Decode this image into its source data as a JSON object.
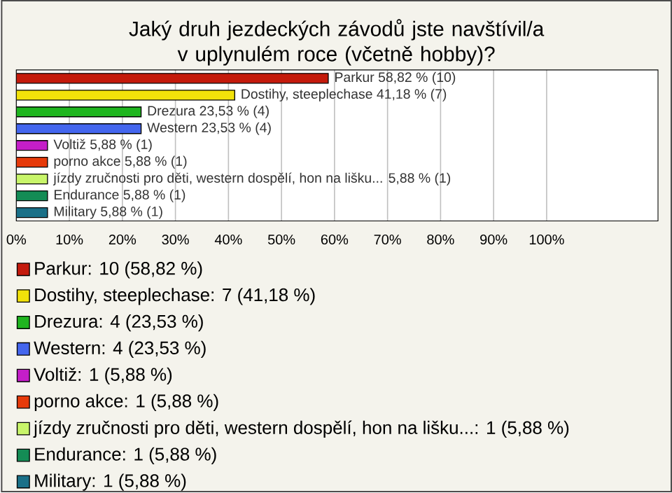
{
  "chart_data": {
    "type": "bar",
    "orientation": "horizontal",
    "title": "Jaký druh jezdeckých závodů jste navštívil/a v uplynulém roce (včetně hobby)?",
    "categories": [
      null,
      null,
      null,
      null,
      null,
      null,
      null,
      null,
      null
    ],
    "series": [
      {
        "name": "Parkur: 10 (58,82 %)",
        "color": "#c41a0c",
        "values": [
          58.82,
          null,
          null,
          null,
          null,
          null,
          null,
          null,
          null
        ],
        "value_labels": [
          "Parkur 58,82 % (10)",
          null,
          null,
          null,
          null,
          null,
          null,
          null,
          null
        ]
      },
      {
        "name": "Dostihy, steeplechase: 7 (41,18 %)",
        "color": "#f2e20a",
        "values": [
          null,
          41.18,
          null,
          null,
          null,
          null,
          null,
          null,
          null
        ],
        "value_labels": [
          null,
          "Dostihy, steeplechase 41,18 % (7)",
          null,
          null,
          null,
          null,
          null,
          null,
          null
        ]
      },
      {
        "name": "Drezura: 4 (23,53 %)",
        "color": "#1fb51f",
        "values": [
          null,
          null,
          23.53,
          null,
          null,
          null,
          null,
          null,
          null
        ],
        "value_labels": [
          null,
          null,
          "Drezura 23,53 % (4)",
          null,
          null,
          null,
          null,
          null,
          null
        ]
      },
      {
        "name": "Western: 4 (23,53 %)",
        "color": "#4466ee",
        "values": [
          null,
          null,
          null,
          23.53,
          null,
          null,
          null,
          null,
          null
        ],
        "value_labels": [
          null,
          null,
          null,
          "Western 23,53 % (4)",
          null,
          null,
          null,
          null,
          null
        ]
      },
      {
        "name": "Voltiž: 1 (5,88 %)",
        "color": "#c41ec8",
        "values": [
          null,
          null,
          null,
          null,
          5.88,
          null,
          null,
          null,
          null
        ],
        "value_labels": [
          null,
          null,
          null,
          null,
          "Voltiž 5,88 % (1)",
          null,
          null,
          null,
          null
        ]
      },
      {
        "name": "porno akce: 1 (5,88 %)",
        "color": "#e63a0a",
        "values": [
          null,
          null,
          null,
          null,
          null,
          5.88,
          null,
          null,
          null
        ],
        "value_labels": [
          null,
          null,
          null,
          null,
          null,
          "porno akce 5,88 % (1)",
          null,
          null,
          null
        ]
      },
      {
        "name": "jízdy zručnosti pro děti, western dospělí, hon na lišku...: 1 (5,88 %)",
        "color": "#c8f56a",
        "values": [
          null,
          null,
          null,
          null,
          null,
          null,
          5.88,
          null,
          null
        ],
        "value_labels": [
          null,
          null,
          null,
          null,
          null,
          null,
          "jízdy zručnosti pro děti, western dospělí, hon na lišku... 5,88 % (1)",
          null,
          null
        ]
      },
      {
        "name": "Endurance: 1 (5,88 %)",
        "color": "#148c55",
        "values": [
          null,
          null,
          null,
          null,
          null,
          null,
          null,
          5.88,
          null
        ],
        "value_labels": [
          null,
          null,
          null,
          null,
          null,
          null,
          null,
          "Endurance 5,88 % (1)",
          null
        ]
      },
      {
        "name": "Military: 1 (5,88 %)",
        "color": "#1a7088",
        "values": [
          null,
          null,
          null,
          null,
          null,
          null,
          null,
          null,
          5.88
        ],
        "value_labels": [
          null,
          null,
          null,
          null,
          null,
          null,
          null,
          null,
          "Military 5,88 % (1)"
        ]
      }
    ],
    "xlim": [
      0,
      121
    ],
    "xticks": [
      {
        "value": 0,
        "label": "0%"
      },
      {
        "value": 10,
        "label": "10%"
      },
      {
        "value": 20,
        "label": "20%"
      },
      {
        "value": 30,
        "label": "30%"
      },
      {
        "value": 40,
        "label": "40%"
      },
      {
        "value": 50,
        "label": "50%"
      },
      {
        "value": 60,
        "label": "60%"
      },
      {
        "value": 70,
        "label": "70%"
      },
      {
        "value": 80,
        "label": "80%"
      },
      {
        "value": 90,
        "label": "90%"
      },
      {
        "value": 100,
        "label": "100%"
      }
    ],
    "grid": "x",
    "legend": "bottom"
  }
}
